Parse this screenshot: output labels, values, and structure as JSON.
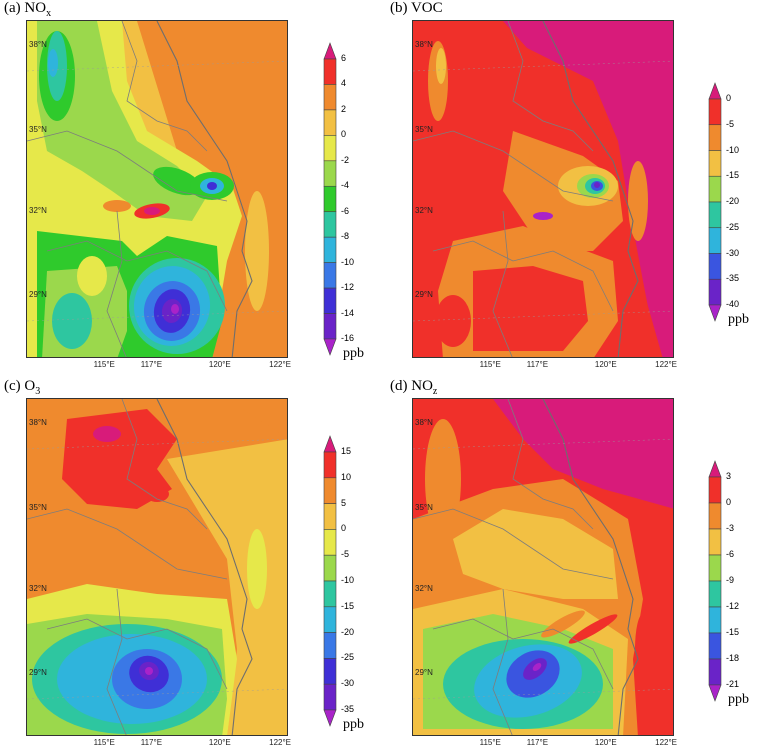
{
  "chart_data": [
    {
      "type": "heatmap",
      "title": "(a) NOx",
      "title_base": "(a) NO",
      "title_sub": "x",
      "unit": "ppb",
      "x_ticks": [
        "115°E",
        "117°E",
        "120°E",
        "122°E"
      ],
      "y_ticks": [
        "38°N",
        "35°N",
        "32°N",
        "29°N"
      ],
      "colorbar_levels": [
        "6",
        "4",
        "2",
        "0",
        "-2",
        "-4",
        "-6",
        "-8",
        "-10",
        "-12",
        "-14",
        "-16"
      ],
      "colorbar_colors": [
        "#d81b7a",
        "#f0302a",
        "#ef8a2e",
        "#f2c043",
        "#e6e84a",
        "#9bd84c",
        "#2fca2c",
        "#2ec6a0",
        "#2fb4dc",
        "#3a78e6",
        "#3f2fd6",
        "#6a23c8",
        "#a923c9"
      ],
      "background_color": "#f2c043"
    },
    {
      "type": "heatmap",
      "title": "(b) VOC",
      "title_base": "(b) VOC",
      "title_sub": "",
      "unit": "ppb",
      "x_ticks": [
        "115°E",
        "117°E",
        "120°E",
        "122°E"
      ],
      "y_ticks": [
        "38°N",
        "35°N",
        "32°N",
        "29°N"
      ],
      "colorbar_levels": [
        "0",
        "-5",
        "-10",
        "-15",
        "-20",
        "-25",
        "-30",
        "-35",
        "-40"
      ],
      "colorbar_colors": [
        "#d81b7a",
        "#f0302a",
        "#ef8a2e",
        "#f2c043",
        "#9bd84c",
        "#2ec6a0",
        "#2fb4dc",
        "#3a55e0",
        "#6a23c8",
        "#a923c9"
      ],
      "background_color": "#f0302a"
    },
    {
      "type": "heatmap",
      "title": "(c) O3",
      "title_base": "(c) O",
      "title_sub": "3",
      "unit": "ppb",
      "x_ticks": [
        "115°E",
        "117°E",
        "120°E",
        "122°E"
      ],
      "y_ticks": [
        "38°N",
        "35°N",
        "32°N",
        "29°N"
      ],
      "colorbar_levels": [
        "15",
        "10",
        "5",
        "0",
        "-5",
        "-10",
        "-15",
        "-20",
        "-25",
        "-30",
        "-35"
      ],
      "colorbar_colors": [
        "#d81b7a",
        "#f0302a",
        "#ef8a2e",
        "#f2c043",
        "#e6e84a",
        "#9bd84c",
        "#2ec6a0",
        "#2fb4dc",
        "#3a78e6",
        "#3f2fd6",
        "#6a23c8",
        "#a923c9"
      ],
      "background_color": "#ef8a2e"
    },
    {
      "type": "heatmap",
      "title": "(d) NOz",
      "title_base": "(d) NO",
      "title_sub": "z",
      "unit": "ppb",
      "x_ticks": [
        "115°E",
        "117°E",
        "120°E",
        "122°E"
      ],
      "y_ticks": [
        "38°N",
        "35°N",
        "32°N",
        "29°N"
      ],
      "colorbar_levels": [
        "3",
        "0",
        "-3",
        "-6",
        "-9",
        "-12",
        "-15",
        "-18",
        "-21"
      ],
      "colorbar_colors": [
        "#d81b7a",
        "#f0302a",
        "#ef8a2e",
        "#f2c043",
        "#9bd84c",
        "#2ec6a0",
        "#2fb4dc",
        "#3a55e0",
        "#6a23c8",
        "#a923c9"
      ],
      "background_color": "#ef8a2e"
    }
  ]
}
